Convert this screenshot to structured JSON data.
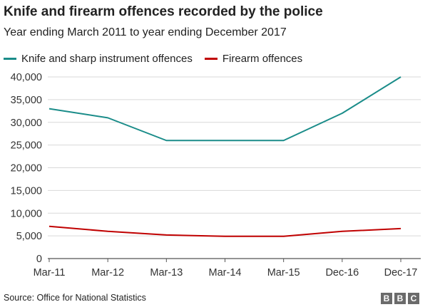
{
  "header": {
    "title": "Knife and firearm offences recorded by the police",
    "subtitle": "Year ending March 2011 to year ending December 2017"
  },
  "legend": {
    "items": [
      {
        "label": "Knife and sharp instrument offences",
        "color": "#1a8c89"
      },
      {
        "label": "Firearm offences",
        "color": "#c00000"
      }
    ]
  },
  "footer": {
    "source": "Source: Office for National Statistics",
    "logo_text": "BBC"
  },
  "chart_data": {
    "type": "line",
    "title": "Knife and firearm offences recorded by the police",
    "subtitle": "Year ending March 2011 to year ending December 2017",
    "xlabel": "",
    "ylabel": "",
    "categories": [
      "Mar-11",
      "Mar-12",
      "Mar-13",
      "Mar-14",
      "Mar-15",
      "Dec-16",
      "Dec-17"
    ],
    "series": [
      {
        "name": "Knife and sharp instrument offences",
        "color": "#1a8c89",
        "values": [
          33000,
          31000,
          26000,
          26000,
          26000,
          32000,
          40000
        ]
      },
      {
        "name": "Firearm offences",
        "color": "#c00000",
        "values": [
          7100,
          6000,
          5200,
          4900,
          4900,
          6000,
          6600
        ]
      }
    ],
    "ylim": [
      0,
      40000
    ],
    "yticks": [
      0,
      5000,
      10000,
      15000,
      20000,
      25000,
      30000,
      35000,
      40000
    ],
    "ytick_labels": [
      "0",
      "5,000",
      "10,000",
      "15,000",
      "20,000",
      "25,000",
      "30,000",
      "35,000",
      "40,000"
    ],
    "grid": true,
    "legend_position": "top-left"
  }
}
